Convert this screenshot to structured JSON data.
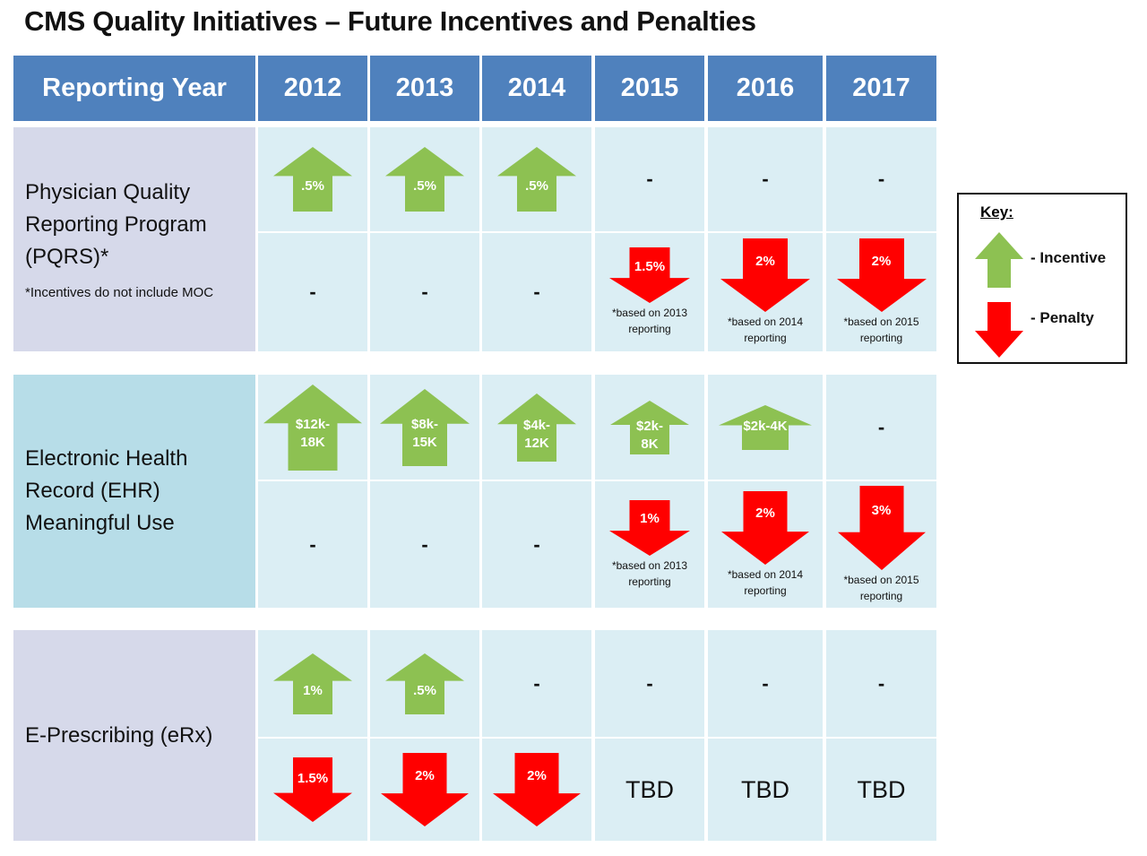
{
  "title": "CMS Quality Initiatives – Future Incentives and Penalties",
  "header": {
    "label": "Reporting Year",
    "years": [
      "2012",
      "2013",
      "2014",
      "2015",
      "2016",
      "2017"
    ]
  },
  "colors": {
    "header": "#4f81bd",
    "cell": "#dbeef4",
    "incentive": "#8dc152",
    "penalty": "#ff0000",
    "label_lavender": "#d6d9ea",
    "label_blue": "#b7dde8"
  },
  "sections": [
    {
      "label": "Physician Quality Reporting Program (PQRS)*",
      "note": "*Incentives do not include MOC",
      "rows": [
        [
          {
            "type": "up",
            "value": ".5%"
          },
          {
            "type": "up",
            "value": ".5%"
          },
          {
            "type": "up",
            "value": ".5%"
          },
          {
            "type": "dash",
            "value": "-"
          },
          {
            "type": "dash",
            "value": "-"
          },
          {
            "type": "dash",
            "value": "-"
          }
        ],
        [
          {
            "type": "dash",
            "value": "-"
          },
          {
            "type": "dash",
            "value": "-"
          },
          {
            "type": "dash",
            "value": "-"
          },
          {
            "type": "down",
            "value": "1.5%",
            "note": "*based on 2013 reporting"
          },
          {
            "type": "down",
            "value": "2%",
            "note": "*based on 2014 reporting"
          },
          {
            "type": "down",
            "value": "2%",
            "note": "*based on 2015 reporting"
          }
        ]
      ]
    },
    {
      "label": "Electronic Health Record (EHR) Meaningful Use",
      "rows": [
        [
          {
            "type": "up",
            "value": "$12k-18K"
          },
          {
            "type": "up",
            "value": "$8k-15K"
          },
          {
            "type": "up",
            "value": "$4k-12K"
          },
          {
            "type": "up",
            "value": "$2k-8K"
          },
          {
            "type": "up",
            "value": "$2k-4K"
          },
          {
            "type": "dash",
            "value": "-"
          }
        ],
        [
          {
            "type": "dash",
            "value": "-"
          },
          {
            "type": "dash",
            "value": "-"
          },
          {
            "type": "dash",
            "value": "-"
          },
          {
            "type": "down",
            "value": "1%",
            "note": "*based on 2013 reporting"
          },
          {
            "type": "down",
            "value": "2%",
            "note": "*based on 2014 reporting"
          },
          {
            "type": "down",
            "value": "3%",
            "note": "*based on 2015 reporting"
          }
        ]
      ]
    },
    {
      "label": "E-Prescribing (eRx)",
      "rows": [
        [
          {
            "type": "up",
            "value": "1%"
          },
          {
            "type": "up",
            "value": ".5%"
          },
          {
            "type": "dash",
            "value": "-"
          },
          {
            "type": "dash",
            "value": "-"
          },
          {
            "type": "dash",
            "value": "-"
          },
          {
            "type": "dash",
            "value": "-"
          }
        ],
        [
          {
            "type": "down",
            "value": "1.5%"
          },
          {
            "type": "down",
            "value": "2%"
          },
          {
            "type": "down",
            "value": "2%"
          },
          {
            "type": "text",
            "value": "TBD"
          },
          {
            "type": "text",
            "value": "TBD"
          },
          {
            "type": "text",
            "value": "TBD"
          }
        ]
      ]
    }
  ],
  "key": {
    "title": "Key:",
    "incentive": "- Incentive",
    "penalty": "- Penalty"
  }
}
